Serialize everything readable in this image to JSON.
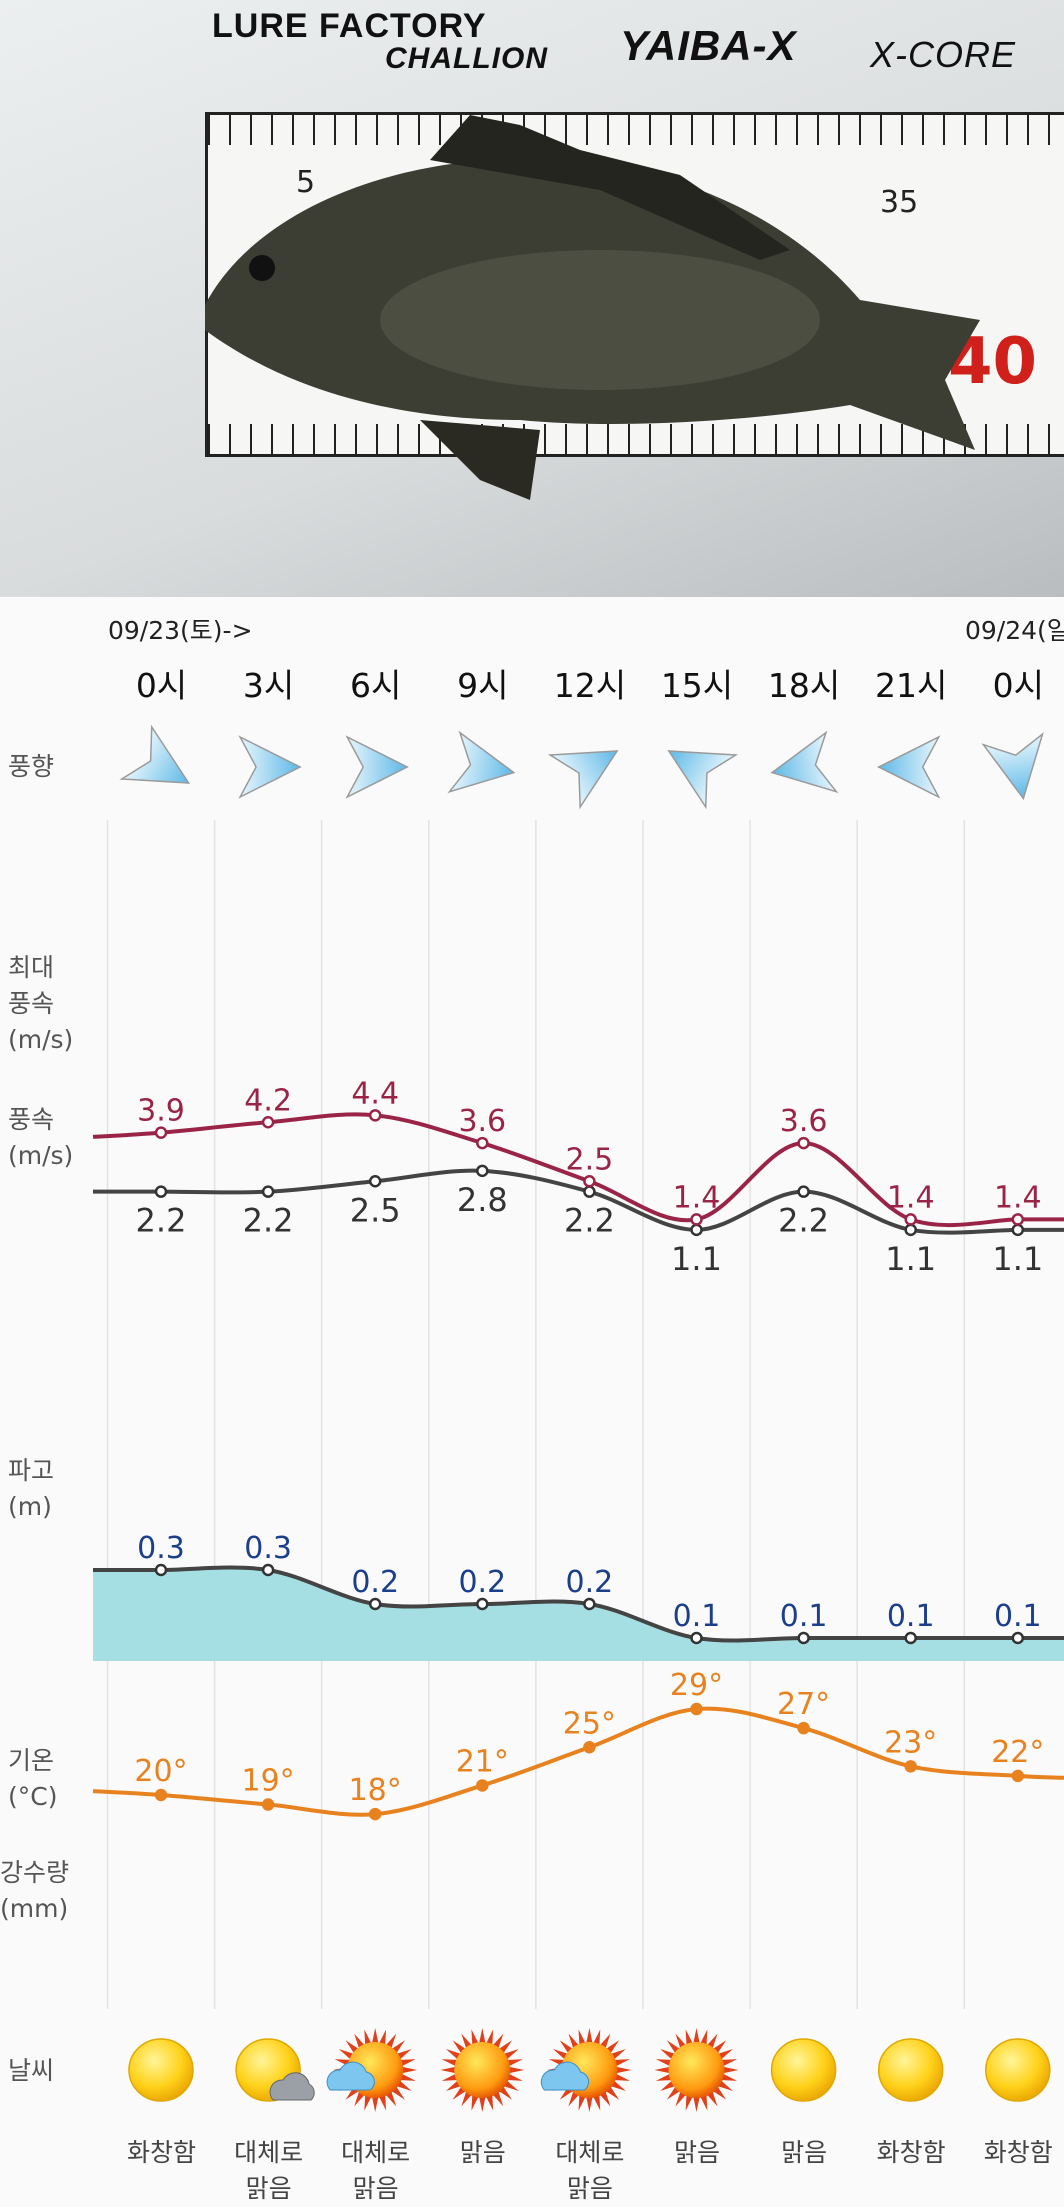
{
  "photo": {
    "logos": [
      "LURE FACTORY",
      "CHALLION",
      "YAIBA-X",
      "X-CORE"
    ],
    "ruler_marks": [
      "5",
      "35",
      "40"
    ]
  },
  "dates": {
    "start": "09/23(토)->",
    "next": "09/24(일"
  },
  "hours": [
    "0시",
    "3시",
    "6시",
    "9시",
    "12시",
    "15시",
    "18시",
    "21시",
    "0시"
  ],
  "labels": {
    "wind_dir": "풍향",
    "max_wind": "최대\n풍속\n(m/s)",
    "wind": "풍속\n(m/s)",
    "wave": "파고\n(m)",
    "temp": "기온\n(°C)",
    "rain": "강수량\n(mm)",
    "weather": "날씨"
  },
  "wind_dir_deg": [
    120,
    90,
    90,
    100,
    60,
    -60,
    -100,
    -90,
    170
  ],
  "max_wind": [
    3.9,
    4.2,
    4.4,
    3.6,
    2.5,
    1.4,
    3.6,
    1.4,
    1.4
  ],
  "wind": [
    2.2,
    2.2,
    2.5,
    2.8,
    2.2,
    1.1,
    2.2,
    1.1,
    1.1
  ],
  "wave": [
    0.3,
    0.3,
    0.2,
    0.2,
    0.2,
    0.1,
    0.1,
    0.1,
    0.1
  ],
  "temp": [
    20,
    19,
    18,
    21,
    25,
    29,
    27,
    23,
    22
  ],
  "weather": [
    {
      "icon": "sun",
      "text": "화창함"
    },
    {
      "icon": "sun-cloud",
      "text": "대체로\n맑음"
    },
    {
      "icon": "sunburst-cloud",
      "text": "대체로\n맑음"
    },
    {
      "icon": "sunburst",
      "text": "맑음"
    },
    {
      "icon": "sunburst-cloud",
      "text": "대체로\n맑음"
    },
    {
      "icon": "sunburst",
      "text": "맑음"
    },
    {
      "icon": "sun",
      "text": "맑음"
    },
    {
      "icon": "sun",
      "text": "화창함"
    },
    {
      "icon": "sun",
      "text": "화창함"
    }
  ],
  "colors": {
    "max_wind": "#9a2447",
    "wind": "#444444",
    "wave_fill": "#a6dfe3",
    "wave_text": "#1c3f8c",
    "temp": "#e8821e",
    "arrow": "#5cb8e6"
  }
}
